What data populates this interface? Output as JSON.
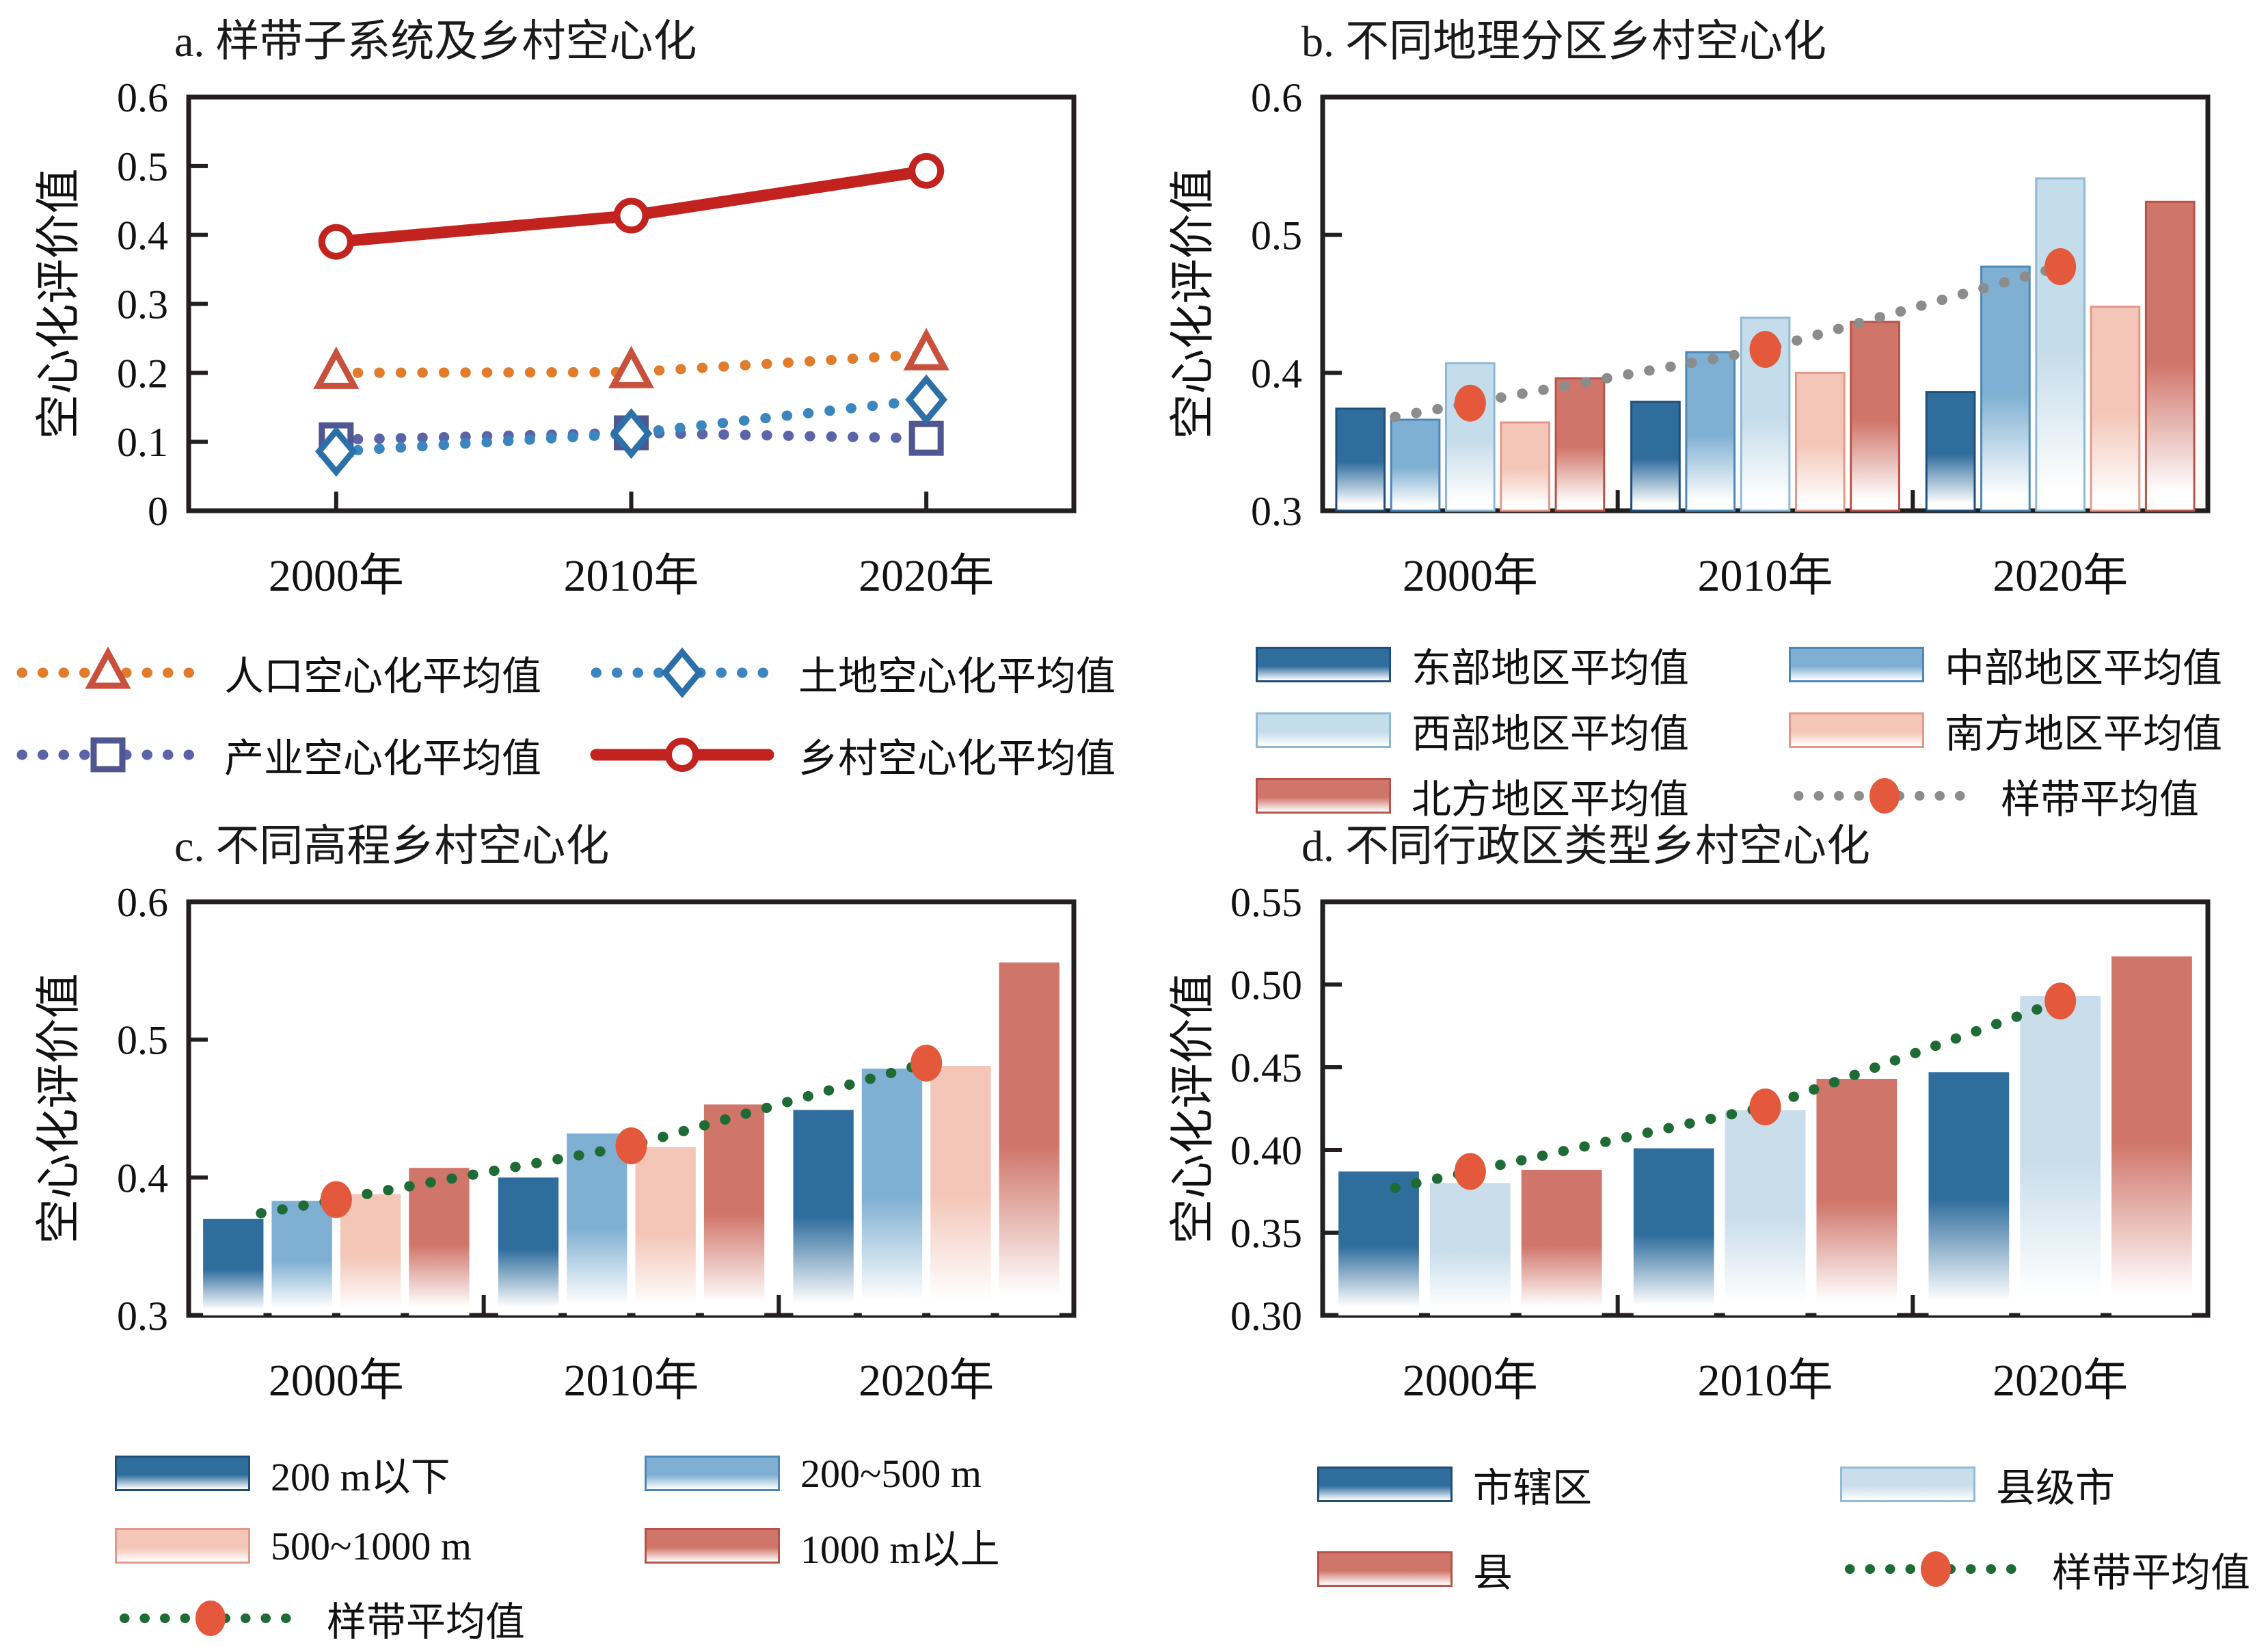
{
  "figure": {
    "background": "#ffffff",
    "axis_color": "#231f20",
    "text_color": "#1a1a1a"
  },
  "chart_data": [
    {
      "id": "a",
      "type": "line",
      "title": "a. 样带子系统及乡村空心化",
      "ylabel": "空心化评价值",
      "xlabel": "",
      "categories": [
        "2000年",
        "2010年",
        "2020年"
      ],
      "ylim": [
        0,
        0.6
      ],
      "yticks": [
        0,
        0.1,
        0.2,
        0.3,
        0.4,
        0.5,
        0.6
      ],
      "ytick_labels": [
        "0",
        "0.1",
        "0.2",
        "0.3",
        "0.4",
        "0.5",
        "0.6"
      ],
      "grid": false,
      "series": [
        {
          "name": "人口空心化平均值",
          "values": [
            0.2,
            0.201,
            0.227
          ],
          "line": "dotted",
          "color": "#E07C2C",
          "marker": "triangle",
          "marker_color": "#C8503C"
        },
        {
          "name": "产业空心化平均值",
          "values": [
            0.103,
            0.113,
            0.105
          ],
          "line": "dotted",
          "color": "#5C64A8",
          "marker": "square",
          "marker_color": "#50568F"
        },
        {
          "name": "土地空心化平均值",
          "values": [
            0.086,
            0.112,
            0.161
          ],
          "line": "dotted",
          "color": "#3B86BE",
          "marker": "diamond",
          "marker_color": "#2D6FA8"
        },
        {
          "name": "乡村空心化平均值",
          "values": [
            0.39,
            0.428,
            0.493
          ],
          "line": "solid",
          "color": "#C3231F",
          "marker": "circle",
          "marker_color": "#C3231F"
        }
      ],
      "legend_items": [
        {
          "label": "人口空心化平均值",
          "swatch": "dots",
          "color": "#E07C2C",
          "marker": "triangle",
          "marker_color": "#C8503C"
        },
        {
          "label": "土地空心化平均值",
          "swatch": "dots",
          "color": "#3B86BE",
          "marker": "diamond",
          "marker_color": "#2D6FA8"
        },
        {
          "label": "产业空心化平均值",
          "swatch": "dots",
          "color": "#5C64A8",
          "marker": "square",
          "marker_color": "#50568F"
        },
        {
          "label": "乡村空心化平均值",
          "swatch": "solid",
          "color": "#C3231F",
          "marker": "circle",
          "marker_color": "#C3231F"
        }
      ]
    },
    {
      "id": "b",
      "type": "bar",
      "title": "b. 不同地理分区乡村空心化",
      "ylabel": "空心化评价值",
      "xlabel": "",
      "categories": [
        "2000年",
        "2010年",
        "2020年"
      ],
      "ylim": [
        0.3,
        0.6
      ],
      "yticks": [
        0.3,
        0.4,
        0.5,
        0.6
      ],
      "ytick_labels": [
        "0.3",
        "0.4",
        "0.5",
        "0.6"
      ],
      "grid": false,
      "bar_stroke_width": 3,
      "series": [
        {
          "name": "东部地区平均值",
          "values": [
            0.374,
            0.379,
            0.386
          ],
          "color": "#2F6D9D",
          "stroke": "#1F4E79"
        },
        {
          "name": "中部地区平均值",
          "values": [
            0.366,
            0.415,
            0.477
          ],
          "color": "#7FAFD2",
          "stroke": "#4D88B5"
        },
        {
          "name": "西部地区平均值",
          "values": [
            0.407,
            0.44,
            0.541
          ],
          "color": "#C5DCEA",
          "stroke": "#8FB8D4"
        },
        {
          "name": "南方地区平均值",
          "values": [
            0.364,
            0.4,
            0.448
          ],
          "color": "#F3C6B8",
          "stroke": "#E09A8C"
        },
        {
          "name": "北方地区平均值",
          "values": [
            0.396,
            0.437,
            0.524
          ],
          "color": "#D0756A",
          "stroke": "#B85248"
        }
      ],
      "mean": {
        "name": "样带平均值",
        "values": [
          0.378,
          0.417,
          0.477
        ],
        "line_color": "#8C8C8C",
        "marker_color": "#E4593B"
      },
      "legend_items": [
        {
          "label": "东部地区平均值",
          "swatch": "bar",
          "color": "#2F6D9D",
          "stroke": "#1F4E79"
        },
        {
          "label": "中部地区平均值",
          "swatch": "bar",
          "color": "#7FAFD2",
          "stroke": "#4D88B5"
        },
        {
          "label": "西部地区平均值",
          "swatch": "bar",
          "color": "#C5DCEA",
          "stroke": "#8FB8D4"
        },
        {
          "label": "南方地区平均值",
          "swatch": "bar",
          "color": "#F3C6B8",
          "stroke": "#E09A8C"
        },
        {
          "label": "北方地区平均值",
          "swatch": "bar",
          "color": "#D0756A",
          "stroke": "#B85248"
        },
        {
          "label": "样带平均值",
          "swatch": "mean-dots",
          "color": "#8C8C8C",
          "marker_color": "#E4593B"
        }
      ]
    },
    {
      "id": "c",
      "type": "bar",
      "title": "c. 不同高程乡村空心化",
      "ylabel": "空心化评价值",
      "xlabel": "",
      "categories": [
        "2000年",
        "2010年",
        "2020年"
      ],
      "ylim": [
        0.3,
        0.6
      ],
      "yticks": [
        0.3,
        0.4,
        0.5,
        0.6
      ],
      "ytick_labels": [
        "0.3",
        "0.4",
        "0.5",
        "0.6"
      ],
      "grid": false,
      "bar_stroke_width": 0,
      "series": [
        {
          "name": "200 m以下",
          "values": [
            0.37,
            0.4,
            0.449
          ],
          "color": "#2F6D9D",
          "stroke": "#1F4E79"
        },
        {
          "name": "200~500 m",
          "values": [
            0.383,
            0.432,
            0.479
          ],
          "color": "#7FAFD2",
          "stroke": "#4D88B5"
        },
        {
          "name": "500~1000 m",
          "values": [
            0.388,
            0.422,
            0.481
          ],
          "color": "#F3C6B8",
          "stroke": "#E09A8C"
        },
        {
          "name": "1000 m以上",
          "values": [
            0.407,
            0.453,
            0.556
          ],
          "color": "#D0756A",
          "stroke": "#B85248"
        }
      ],
      "mean": {
        "name": "样带平均值",
        "values": [
          0.384,
          0.423,
          0.483
        ],
        "line_color": "#1F6B35",
        "marker_color": "#E4593B"
      },
      "legend_items": [
        {
          "label": "200 m以下",
          "swatch": "bar",
          "color": "#2F6D9D",
          "stroke": "#1F4E79"
        },
        {
          "label": "200~500 m",
          "swatch": "bar",
          "color": "#7FAFD2",
          "stroke": "#4D88B5"
        },
        {
          "label": "500~1000 m",
          "swatch": "bar",
          "color": "#F3C6B8",
          "stroke": "#E09A8C"
        },
        {
          "label": "1000 m以上",
          "swatch": "bar",
          "color": "#D0756A",
          "stroke": "#B85248"
        },
        {
          "label": "样带平均值",
          "swatch": "mean-dots",
          "color": "#1F6B35",
          "marker_color": "#E4593B"
        }
      ]
    },
    {
      "id": "d",
      "type": "bar",
      "title": "d. 不同行政区类型乡村空心化",
      "ylabel": "空心化评价值",
      "xlabel": "",
      "categories": [
        "2000年",
        "2010年",
        "2020年"
      ],
      "ylim": [
        0.3,
        0.55
      ],
      "yticks": [
        0.3,
        0.35,
        0.4,
        0.45,
        0.5,
        0.55
      ],
      "ytick_labels": [
        "0.30",
        "0.35",
        "0.40",
        "0.45",
        "0.50",
        "0.55"
      ],
      "grid": false,
      "bar_stroke_width": 0,
      "series": [
        {
          "name": "市辖区",
          "values": [
            0.387,
            0.401,
            0.447
          ],
          "color": "#2F6D9D",
          "stroke": "#1F4E79"
        },
        {
          "name": "县级市",
          "values": [
            0.38,
            0.424,
            0.493
          ],
          "color": "#C9DDEB",
          "stroke": "#94BBD6"
        },
        {
          "name": "县",
          "values": [
            0.388,
            0.443,
            0.517
          ],
          "color": "#D0756A",
          "stroke": "#B85248"
        }
      ],
      "mean": {
        "name": "样带平均值",
        "values": [
          0.387,
          0.426,
          0.49
        ],
        "line_color": "#1F6B35",
        "marker_color": "#E4593B"
      },
      "legend_items": [
        {
          "label": "市辖区",
          "swatch": "bar",
          "color": "#2F6D9D",
          "stroke": "#1F4E79"
        },
        {
          "label": "县级市",
          "swatch": "bar",
          "color": "#C9DDEB",
          "stroke": "#94BBD6"
        },
        {
          "label": "县",
          "swatch": "bar",
          "color": "#D0756A",
          "stroke": "#B85248"
        },
        {
          "label": "样带平均值",
          "swatch": "mean-dots",
          "color": "#1F6B35",
          "marker_color": "#E4593B"
        }
      ]
    }
  ]
}
